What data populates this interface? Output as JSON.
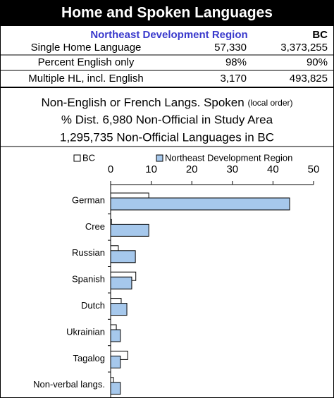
{
  "title": "Home and Spoken Languages",
  "table": {
    "header": [
      "Northeast Development Region",
      "BC"
    ],
    "rows": [
      [
        "Single Home Language",
        "57,330",
        "3,373,255"
      ],
      [
        "Percent English only",
        "98%",
        "90%"
      ],
      [
        "Multiple HL, incl. English",
        "3,170",
        "493,825"
      ]
    ]
  },
  "notes": {
    "line1": "Non-English or French Langs. Spoken",
    "line1_small": "(local order)",
    "line2": "% Dist. 6,980 Non-Official in Study Area",
    "line3": "1,295,735 Non-Official Languages in BC"
  },
  "chart_data": {
    "type": "bar",
    "orientation": "horizontal",
    "categories": [
      "German",
      "Cree",
      "Russian",
      "Spanish",
      "Dutch",
      "Ukrainian",
      "Tagalog",
      "Non-verbal langs."
    ],
    "series": [
      {
        "name": "BC",
        "color": "#ffffff",
        "values": [
          9.4,
          0.2,
          1.9,
          6.2,
          2.6,
          1.4,
          4.2,
          0.7
        ]
      },
      {
        "name": "Northeast Development Region",
        "color": "#a6c8ec",
        "values": [
          44.1,
          9.4,
          6.1,
          5.2,
          4.0,
          2.4,
          2.4,
          2.4
        ]
      }
    ],
    "xlim": [
      0,
      50
    ],
    "xticks": [
      0,
      10,
      20,
      30,
      40,
      50
    ],
    "legend": "top"
  }
}
